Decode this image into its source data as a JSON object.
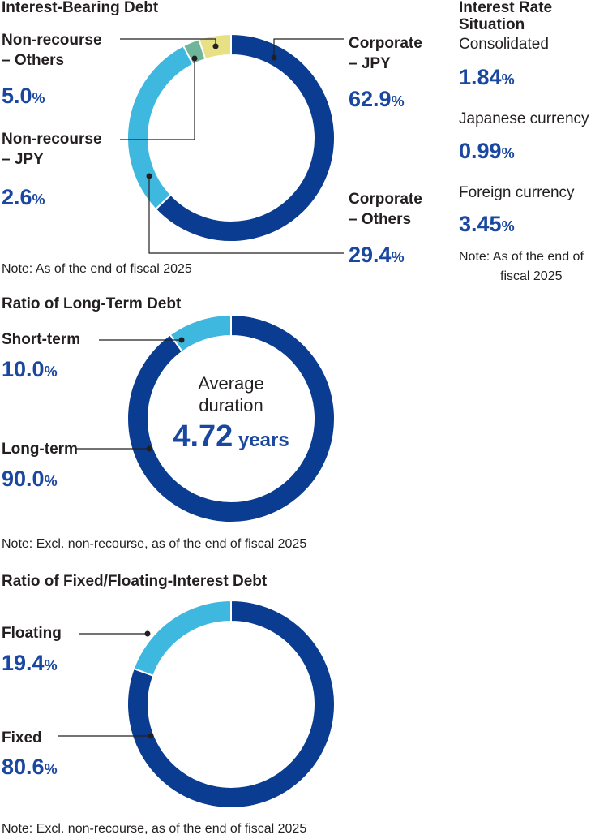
{
  "colors": {
    "dark_blue": "#0a3d91",
    "light_blue": "#3fb8e0",
    "green": "#6fb59a",
    "yellow": "#e7e084",
    "value_blue": "#1a47a0"
  },
  "interest_bearing": {
    "title": "Interest-Bearing Debt",
    "labels": {
      "nr_others": [
        "Non-recourse",
        "– Others"
      ],
      "nr_jpy": [
        "Non-recourse",
        "– JPY"
      ],
      "corp_jpy": [
        "Corporate",
        "– JPY"
      ],
      "corp_others": [
        "Corporate",
        "– Others"
      ]
    },
    "values": {
      "nr_others": "5.0",
      "nr_jpy": "2.6",
      "corp_jpy": "62.9",
      "corp_others": "29.4"
    },
    "note": "Note: As of the end of fiscal 2025"
  },
  "interest_rate": {
    "title_line1": "Interest Rate",
    "title_line2": "Situation",
    "consolidated_label": "Consolidated",
    "consolidated_value": "1.84",
    "jpy_label": "Japanese currency",
    "jpy_value": "0.99",
    "foreign_label": "Foreign currency",
    "foreign_value": "3.45",
    "note_line1": "Note: As of the end of",
    "note_line2": "fiscal 2025"
  },
  "long_term": {
    "title": "Ratio of Long-Term Debt",
    "short_label": "Short-term",
    "short_value": "10.0",
    "long_label": "Long-term",
    "long_value": "90.0",
    "center_line1": "Average",
    "center_line2": "duration",
    "center_value": "4.72",
    "center_unit": "years",
    "note": "Note: Excl. non-recourse, as of the end of fiscal 2025"
  },
  "fixed_floating": {
    "title": "Ratio of Fixed/Floating-Interest Debt",
    "floating_label": "Floating",
    "floating_value": "19.4",
    "fixed_label": "Fixed",
    "fixed_value": "80.6",
    "note": "Note: Excl. non-recourse, as of the end of fiscal 2025"
  },
  "pct_symbol": "%",
  "chart_data": [
    {
      "type": "pie",
      "title": "Interest-Bearing Debt",
      "categories": [
        "Corporate – JPY",
        "Corporate – Others",
        "Non-recourse – JPY",
        "Non-recourse – Others"
      ],
      "values": [
        62.9,
        29.4,
        2.6,
        5.0
      ],
      "colors": [
        "#0a3d91",
        "#3fb8e0",
        "#6fb59a",
        "#e7e084"
      ]
    },
    {
      "type": "pie",
      "title": "Ratio of Long-Term Debt",
      "categories": [
        "Long-term",
        "Short-term"
      ],
      "values": [
        90.0,
        10.0
      ],
      "colors": [
        "#0a3d91",
        "#3fb8e0"
      ]
    },
    {
      "type": "pie",
      "title": "Ratio of Fixed/Floating-Interest Debt",
      "categories": [
        "Fixed",
        "Floating"
      ],
      "values": [
        80.6,
        19.4
      ],
      "colors": [
        "#0a3d91",
        "#3fb8e0"
      ]
    }
  ]
}
